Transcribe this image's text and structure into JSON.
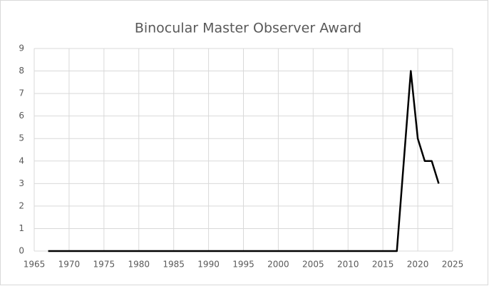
{
  "chart_data": {
    "type": "line",
    "title": "Binocular Master Observer Award",
    "x": [
      1967,
      2017,
      2018,
      2019,
      2020,
      2021,
      2022,
      2023
    ],
    "series": [
      {
        "color": "#000000",
        "values": [
          0,
          0,
          4,
          8,
          5,
          4,
          4,
          3
        ]
      }
    ],
    "xlim": [
      1965,
      2025
    ],
    "xticks": [
      1965,
      1970,
      1975,
      1980,
      1985,
      1990,
      1995,
      2000,
      2005,
      2010,
      2015,
      2020,
      2025
    ],
    "ylim": [
      0,
      9
    ],
    "yticks": [
      0,
      1,
      2,
      3,
      4,
      5,
      6,
      7,
      8,
      9
    ],
    "grid": true
  }
}
